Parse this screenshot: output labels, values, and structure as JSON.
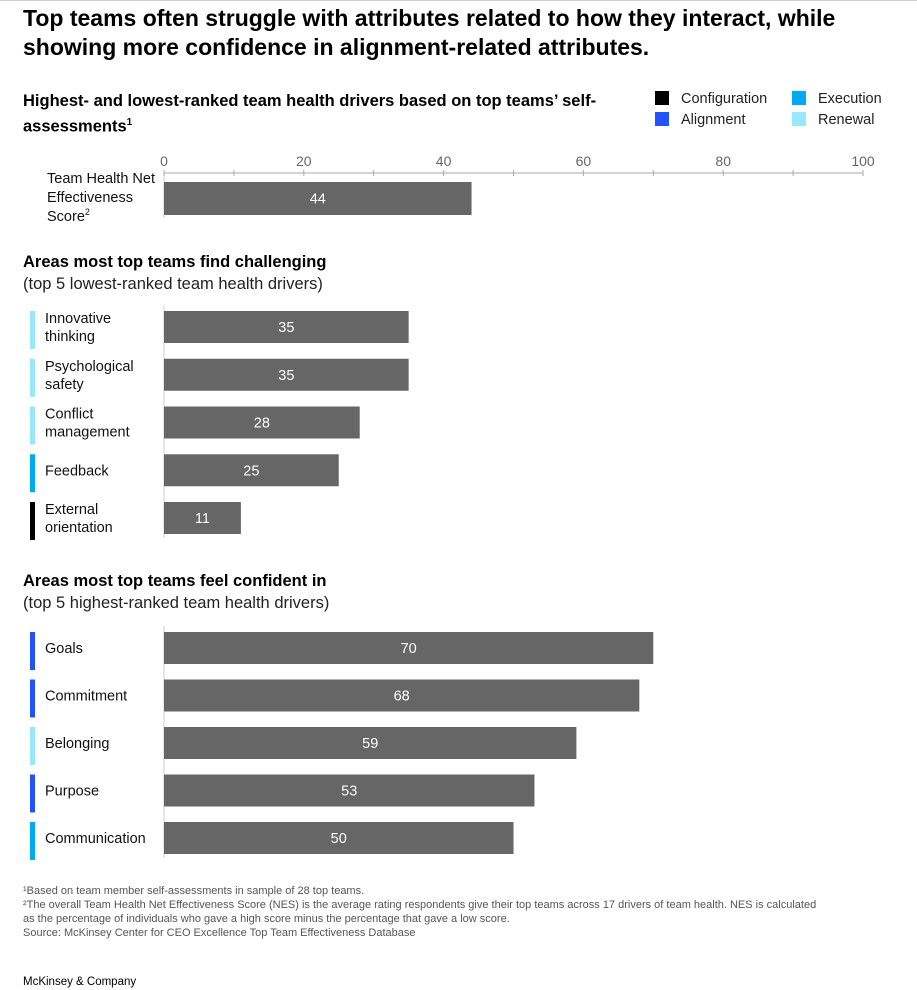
{
  "headline": "Top teams often struggle with attributes related to how they interact, while showing more confidence in alignment-related attributes.",
  "chart_subtitle": "Highest- and lowest-ranked team health drivers based on top teams’ self-assessments",
  "chart_subtitle_sup": "1",
  "legend": [
    {
      "label": "Configuration",
      "color": "#000000"
    },
    {
      "label": "Execution",
      "color": "#00a9f4"
    },
    {
      "label": "Alignment",
      "color": "#2251ff"
    },
    {
      "label": "Renewal",
      "color": "#99e6ff"
    }
  ],
  "section_challenging": {
    "title": "Areas most top teams find challenging",
    "subtitle": "(top 5 lowest-ranked team health drivers)"
  },
  "section_confident": {
    "title": "Areas most top teams feel confident in",
    "subtitle": "(top 5 highest-ranked team health drivers)"
  },
  "chart_data": {
    "type": "bar",
    "orientation": "horizontal",
    "title": "Highest- and lowest-ranked team health drivers based on top teams’ self-assessments",
    "xlim": [
      0,
      100
    ],
    "xticks": [
      0,
      20,
      40,
      60,
      80,
      100
    ],
    "bar_color": "#666666",
    "overall": {
      "label_lines": [
        "Team Health Net",
        "Effectiveness",
        "Score"
      ],
      "label_sup": "2",
      "value": 44
    },
    "challenging": [
      {
        "label_lines": [
          "Innovative",
          "thinking"
        ],
        "value": 35,
        "category": "Renewal"
      },
      {
        "label_lines": [
          "Psychological",
          "safety"
        ],
        "value": 35,
        "category": "Renewal"
      },
      {
        "label_lines": [
          "Conflict",
          "management"
        ],
        "value": 28,
        "category": "Renewal"
      },
      {
        "label_lines": [
          "Feedback"
        ],
        "value": 25,
        "category": "Execution"
      },
      {
        "label_lines": [
          "External",
          "orientation"
        ],
        "value": 11,
        "category": "Configuration"
      }
    ],
    "confident": [
      {
        "label_lines": [
          "Goals"
        ],
        "value": 70,
        "category": "Alignment"
      },
      {
        "label_lines": [
          "Commitment"
        ],
        "value": 68,
        "category": "Alignment"
      },
      {
        "label_lines": [
          "Belonging"
        ],
        "value": 59,
        "category": "Renewal"
      },
      {
        "label_lines": [
          "Purpose"
        ],
        "value": 53,
        "category": "Alignment"
      },
      {
        "label_lines": [
          "Communication"
        ],
        "value": 50,
        "category": "Execution"
      }
    ]
  },
  "footnotes": {
    "note1": "¹Based on team member self-assessments in sample of 28 top teams.",
    "note2a": "²The overall Team Health Net Effectiveness Score (NES) is the average rating respondents give their top teams across 17 drivers of team health. NES is calculated",
    "note2b": " as the percentage of individuals who gave a high score minus the percentage that gave a low score.",
    "source": " Source: McKinsey Center for CEO Excellence Top Team Effectiveness Database"
  },
  "brand": "McKinsey & Company"
}
